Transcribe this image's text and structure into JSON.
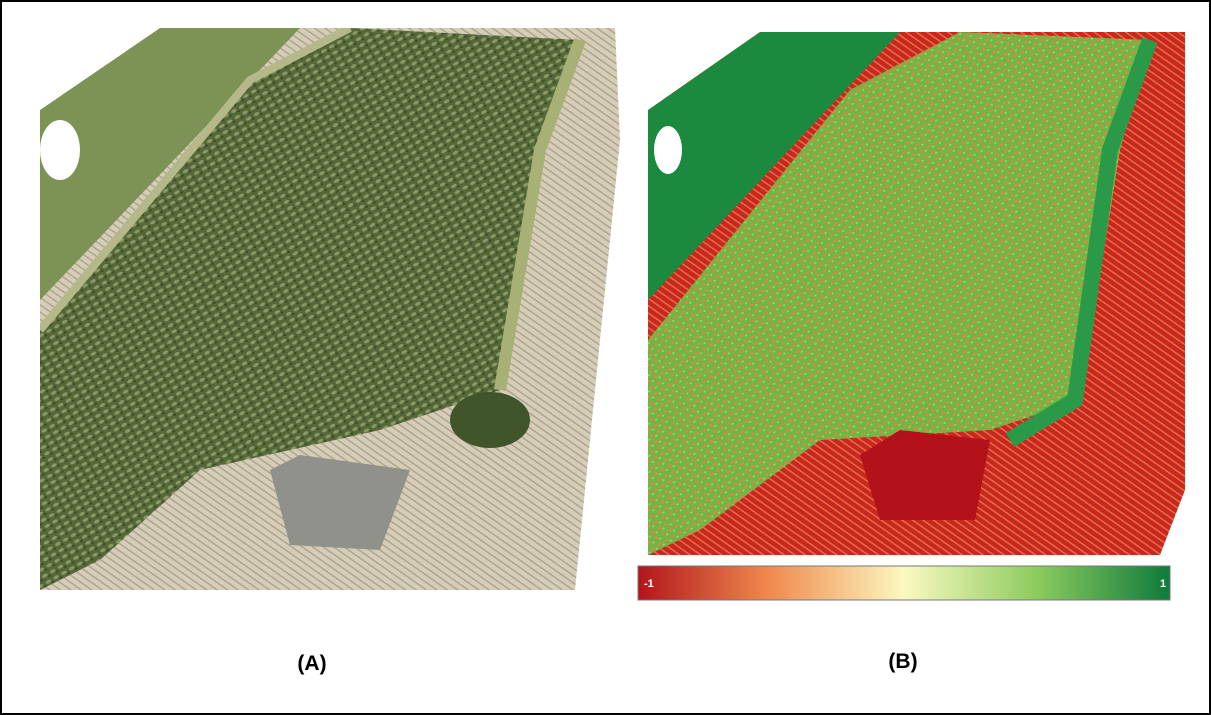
{
  "panels": [
    {
      "label": "(A)"
    },
    {
      "label": "(B)",
      "colorbar": {
        "min_label": "-1",
        "max_label": "1"
      }
    }
  ]
}
